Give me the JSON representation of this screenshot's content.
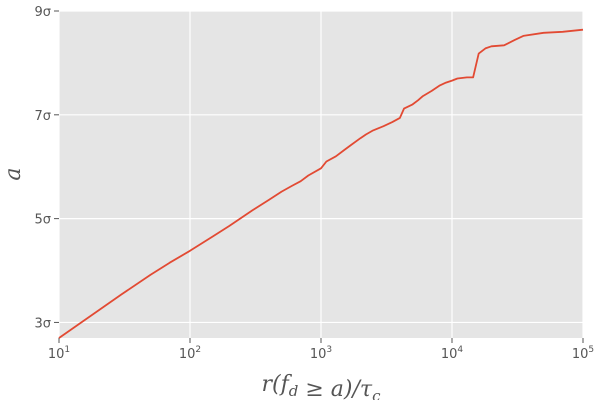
{
  "chart_data": {
    "type": "line",
    "xlabel": "r(f_d ≥ a)/τ_c",
    "ylabel": "a",
    "x_scale": "log",
    "xlim": [
      10,
      100000
    ],
    "ylim": [
      2.7,
      9
    ],
    "grid": true,
    "colors": {
      "line": "#E24A33",
      "plot_background": "#E5E5E5",
      "grid": "#FFFFFF"
    },
    "x_ticks": [
      {
        "value": 10,
        "base": "10",
        "exp": "1"
      },
      {
        "value": 100,
        "base": "10",
        "exp": "2"
      },
      {
        "value": 1000,
        "base": "10",
        "exp": "3"
      },
      {
        "value": 10000,
        "base": "10",
        "exp": "4"
      },
      {
        "value": 100000,
        "base": "10",
        "exp": "5"
      }
    ],
    "y_ticks": [
      {
        "value": 3,
        "label": "3σ"
      },
      {
        "value": 5,
        "label": "5σ"
      },
      {
        "value": 7,
        "label": "7σ"
      },
      {
        "value": 9,
        "label": "9σ"
      }
    ],
    "series": [
      {
        "x": [
          10,
          20,
          30,
          50,
          70,
          100,
          150,
          200,
          300,
          400,
          500,
          600,
          700,
          800,
          1000,
          1100,
          1300,
          1500,
          1700,
          2000,
          2200,
          2500,
          3000,
          3500,
          4000,
          4300,
          5000,
          5500,
          6000,
          7000,
          8000,
          9000,
          10000,
          11000,
          13000,
          14500,
          16000,
          18000,
          20000,
          25000,
          30000,
          35000,
          50000,
          70000,
          100000
        ],
        "y": [
          2.7,
          3.23,
          3.54,
          3.92,
          4.15,
          4.38,
          4.66,
          4.86,
          5.16,
          5.36,
          5.52,
          5.63,
          5.72,
          5.83,
          5.97,
          6.1,
          6.2,
          6.32,
          6.42,
          6.55,
          6.62,
          6.7,
          6.78,
          6.86,
          6.94,
          7.12,
          7.2,
          7.28,
          7.36,
          7.46,
          7.56,
          7.62,
          7.66,
          7.7,
          7.72,
          7.72,
          8.18,
          8.28,
          8.32,
          8.34,
          8.44,
          8.52,
          8.58,
          8.6,
          8.64
        ]
      }
    ]
  }
}
